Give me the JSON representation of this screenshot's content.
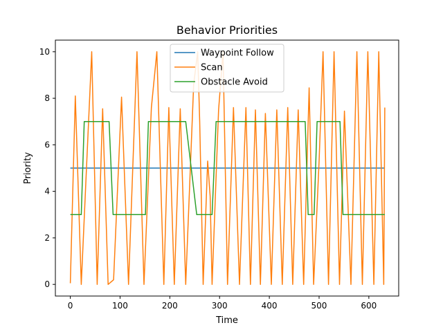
{
  "chart_data": {
    "type": "line",
    "title": "Behavior Priorities",
    "xlabel": "Time",
    "ylabel": "Priority",
    "xlim": [
      -30,
      660
    ],
    "ylim": [
      -0.5,
      10.5
    ],
    "xticks": [
      0,
      100,
      200,
      300,
      400,
      500,
      600
    ],
    "yticks": [
      0,
      2,
      4,
      6,
      8,
      10
    ],
    "legend_position": "top-center",
    "grid": false,
    "series": [
      {
        "name": "Waypoint Follow",
        "color": "#1f77b4",
        "points": [
          [
            0,
            5
          ],
          [
            632,
            5
          ]
        ]
      },
      {
        "name": "Scan",
        "color": "#ff7f0e",
        "points": [
          [
            0,
            0.05
          ],
          [
            10,
            8.1
          ],
          [
            22,
            0.0
          ],
          [
            43,
            10.0
          ],
          [
            54,
            0.0
          ],
          [
            65,
            7.55
          ],
          [
            76,
            0.0
          ],
          [
            87,
            0.2
          ],
          [
            103,
            8.05
          ],
          [
            117,
            0.0
          ],
          [
            134,
            10.0
          ],
          [
            148,
            0.0
          ],
          [
            163,
            7.6
          ],
          [
            174,
            10.0
          ],
          [
            188,
            0.0
          ],
          [
            198,
            7.6
          ],
          [
            209,
            0.0
          ],
          [
            221,
            7.55
          ],
          [
            232,
            0.0
          ],
          [
            248,
            8.6
          ],
          [
            256,
            10.0
          ],
          [
            260,
            7.0
          ],
          [
            267,
            0.0
          ],
          [
            276,
            5.3
          ],
          [
            281,
            3.8
          ],
          [
            285,
            0.0
          ],
          [
            298,
            7.5
          ],
          [
            307,
            10.0
          ],
          [
            316,
            0.0
          ],
          [
            328,
            7.6
          ],
          [
            340,
            0.0
          ],
          [
            353,
            7.6
          ],
          [
            362,
            0.0
          ],
          [
            372,
            7.5
          ],
          [
            382,
            0.0
          ],
          [
            392,
            7.35
          ],
          [
            404,
            0.0
          ],
          [
            415,
            7.5
          ],
          [
            426,
            0.0
          ],
          [
            437,
            7.6
          ],
          [
            447,
            0.0
          ],
          [
            458,
            7.5
          ],
          [
            469,
            0.0
          ],
          [
            480,
            8.45
          ],
          [
            489,
            0.0
          ],
          [
            500,
            5.3
          ],
          [
            508,
            10.0
          ],
          [
            519,
            0.0
          ],
          [
            530,
            10.0
          ],
          [
            541,
            0.0
          ],
          [
            551,
            7.45
          ],
          [
            564,
            0.0
          ],
          [
            576,
            10.0
          ],
          [
            587,
            0.0
          ],
          [
            598,
            10.0
          ],
          [
            610,
            0.0
          ],
          [
            620,
            10.0
          ],
          [
            630,
            0.0
          ],
          [
            632,
            7.6
          ]
        ]
      },
      {
        "name": "Obstacle Avoid",
        "color": "#2ca02c",
        "points": [
          [
            0,
            3
          ],
          [
            22,
            3
          ],
          [
            28,
            7
          ],
          [
            78,
            7
          ],
          [
            86,
            3
          ],
          [
            151,
            3
          ],
          [
            157,
            7
          ],
          [
            232,
            7
          ],
          [
            254,
            3
          ],
          [
            285,
            3
          ],
          [
            293,
            7
          ],
          [
            472,
            7
          ],
          [
            478,
            3
          ],
          [
            490,
            3
          ],
          [
            496,
            7
          ],
          [
            542,
            7
          ],
          [
            548,
            3
          ],
          [
            632,
            3
          ]
        ]
      }
    ]
  }
}
